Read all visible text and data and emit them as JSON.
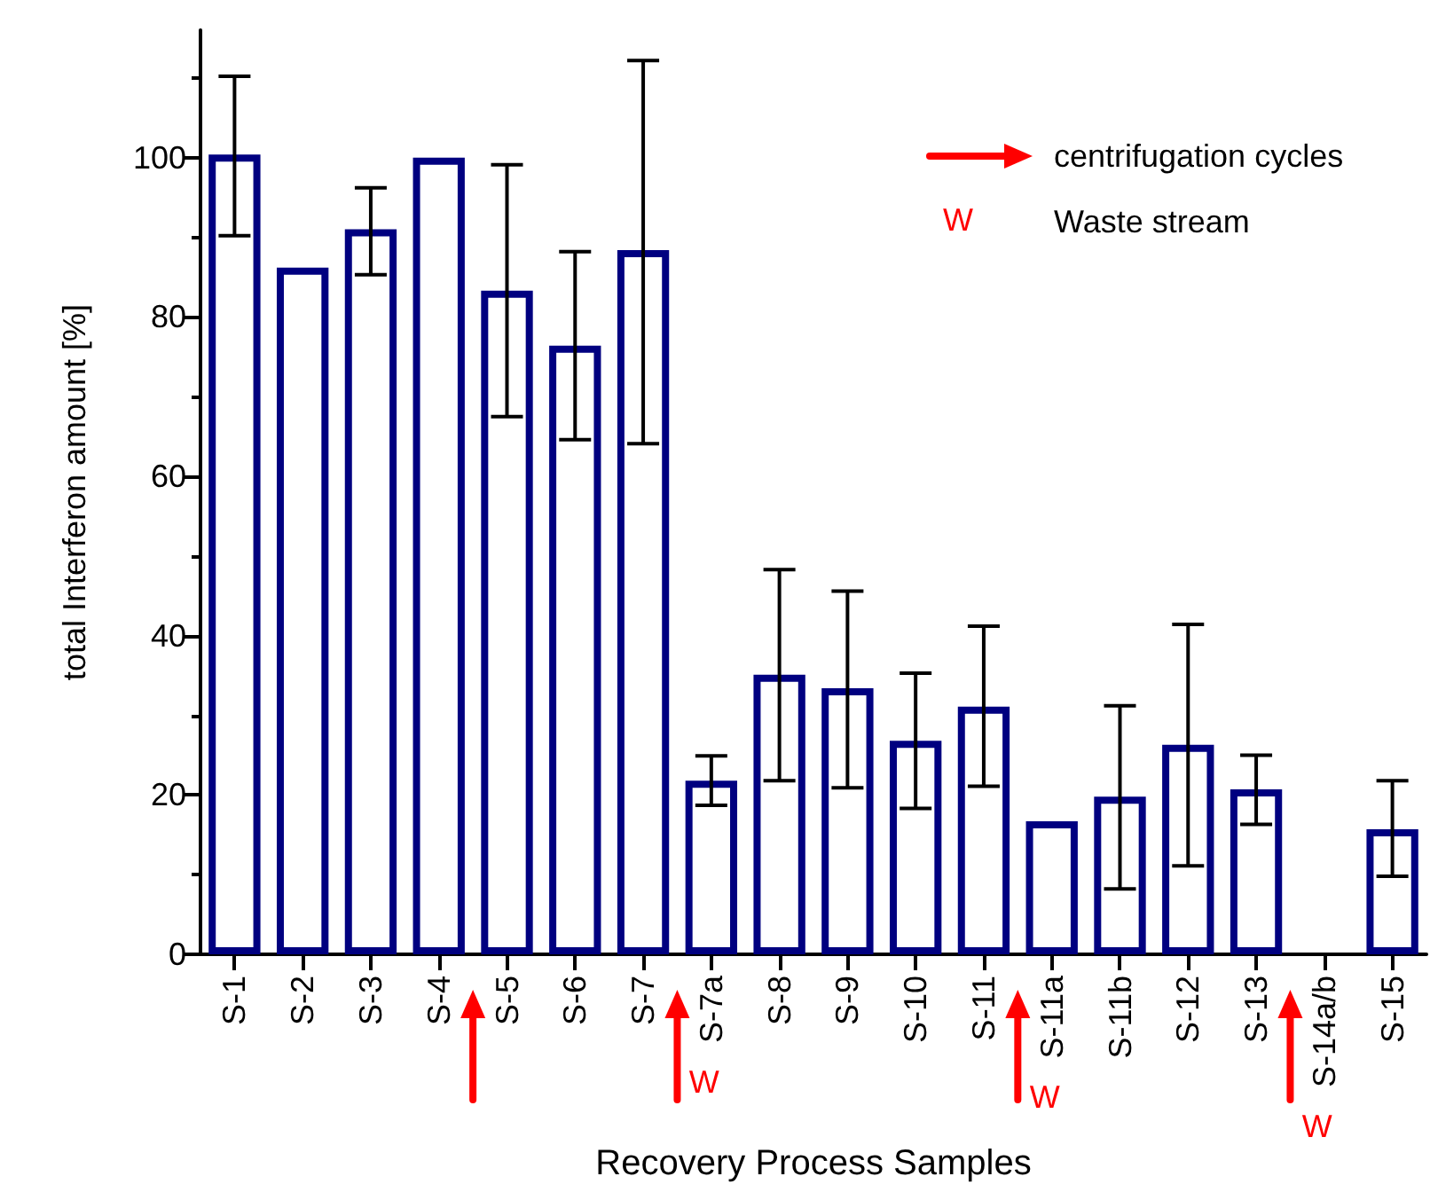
{
  "chart_data": {
    "type": "bar",
    "xlabel": "Recovery Process Samples",
    "ylabel": "total Interferon amount [%]",
    "categories": [
      "S-1",
      "S-2",
      "S-3",
      "S-4",
      "S-5",
      "S-6",
      "S-7",
      "S-7a",
      "S-8",
      "S-9",
      "S-10",
      "S-11",
      "S-11a",
      "S-11b",
      "S-12",
      "S-13",
      "S-14a/b",
      "S-15"
    ],
    "values": [
      100.4,
      86.2,
      91,
      100,
      83.3,
      76.4,
      88.4,
      21.8,
      35.1,
      33.4,
      26.8,
      31.1,
      16.7,
      19.8,
      26.3,
      20.7,
      null,
      15.7
    ],
    "errors": [
      [
        90.2,
        110.2
      ],
      null,
      [
        85.3,
        96.2
      ],
      null,
      [
        67.5,
        99.1
      ],
      [
        64.6,
        88.2
      ],
      [
        64.1,
        112.2
      ],
      [
        18.7,
        24.9
      ],
      [
        21.8,
        48.3
      ],
      [
        20.9,
        45.6
      ],
      [
        18.3,
        35.3
      ],
      [
        21.1,
        41.2
      ],
      null,
      [
        8.2,
        31.2
      ],
      [
        11.1,
        41.4
      ],
      [
        16.3,
        25
      ],
      null,
      [
        9.8,
        21.8
      ]
    ],
    "color": "#000080",
    "ylim": [
      0,
      116
    ],
    "yticks": [
      0,
      20,
      40,
      60,
      80,
      100
    ],
    "grid": false,
    "annotations": [
      "centrifugation cycles",
      "W",
      "Waste stream",
      "W",
      "W",
      "W"
    ]
  }
}
